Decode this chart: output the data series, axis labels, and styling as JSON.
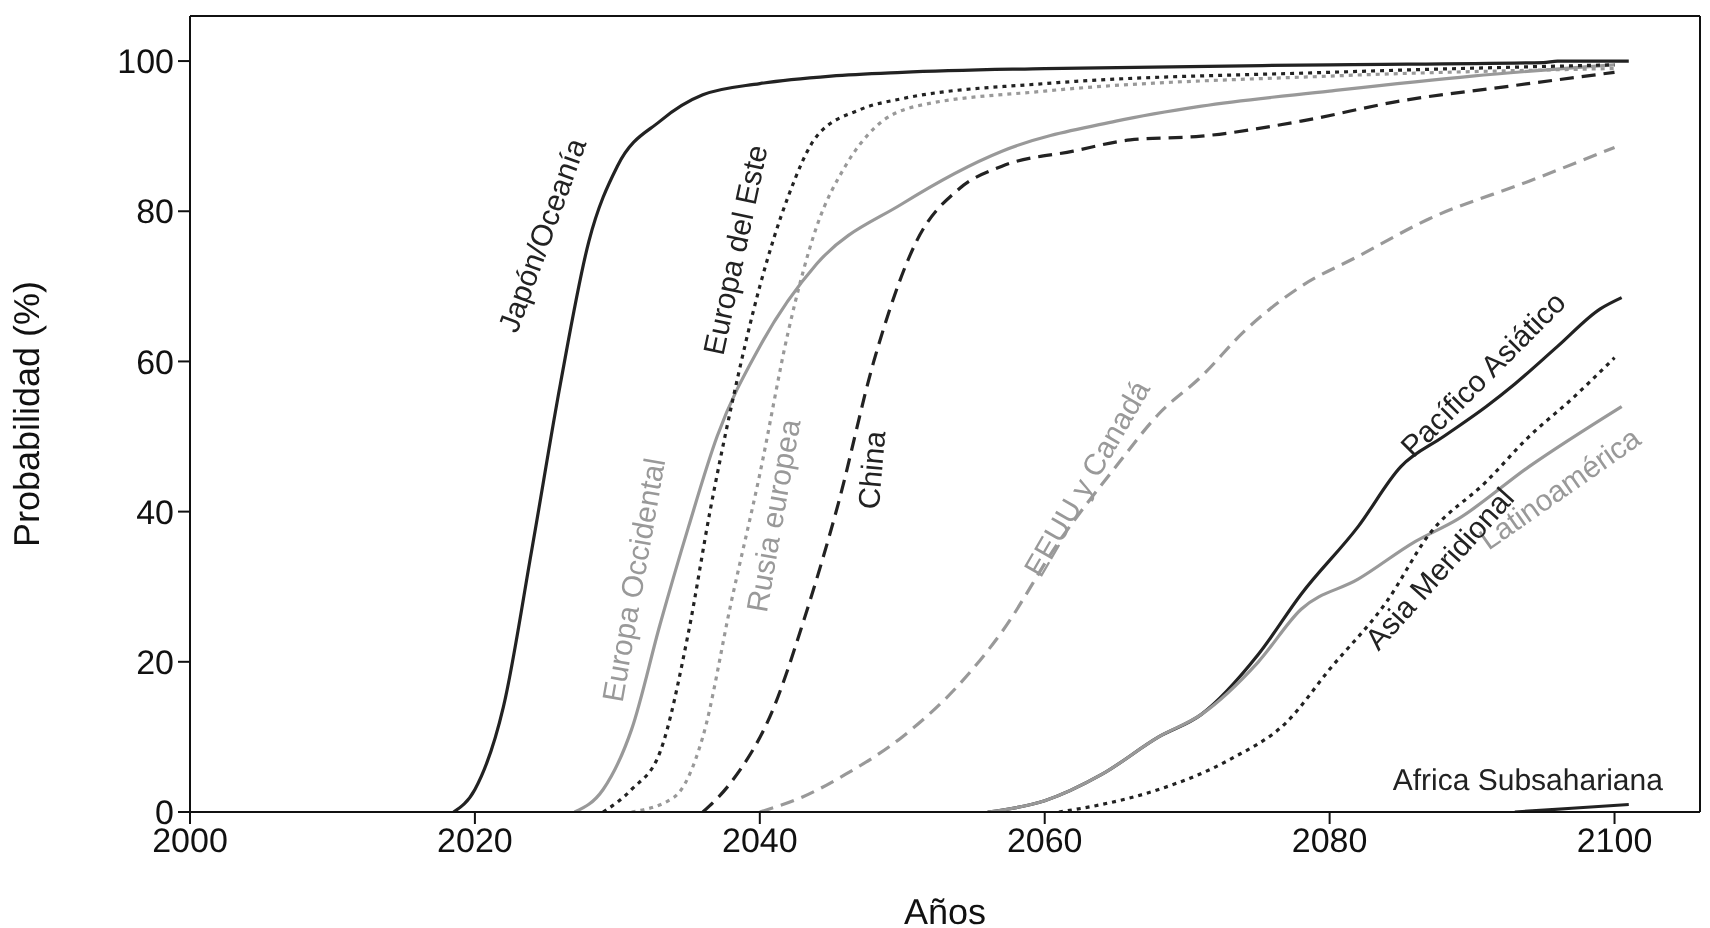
{
  "chart_data": {
    "type": "line",
    "xlabel": "Años",
    "ylabel": "Probabilidad  (%)",
    "xlim": [
      2000,
      2106
    ],
    "xticks": [
      2000,
      2020,
      2040,
      2060,
      2080,
      2100
    ],
    "ylim": [
      0,
      106
    ],
    "yticks": [
      0,
      20,
      40,
      60,
      80,
      100
    ],
    "marker": "none",
    "series": [
      {
        "name": "Japón/Oceanía",
        "color": "#222222",
        "line_style": "solid",
        "x": [
          2018.5,
          2020,
          2022,
          2024,
          2026,
          2028,
          2030,
          2033,
          2036,
          2040,
          2045,
          2050,
          2060,
          2080,
          2095,
          2096,
          2101
        ],
        "values": [
          0,
          3,
          14,
          35,
          57,
          76,
          86,
          92,
          95.5,
          97,
          98,
          98.5,
          99,
          99.5,
          99.8,
          100,
          100
        ]
      },
      {
        "name": "Europa Occidental",
        "color": "#999999",
        "line_style": "solid",
        "x": [
          2027,
          2029,
          2031,
          2033,
          2035,
          2037,
          2040,
          2044,
          2050,
          2057,
          2065,
          2071,
          2080,
          2090,
          2100
        ],
        "values": [
          0,
          3,
          11,
          25,
          38,
          50,
          62,
          73,
          81,
          88,
          92,
          94,
          96,
          98,
          99.5
        ]
      },
      {
        "name": "Europa del Este",
        "color": "#222222",
        "line_style": "dotted",
        "x": [
          2029,
          2031,
          2033,
          2035,
          2036.5,
          2038,
          2040,
          2042,
          2044,
          2047,
          2050,
          2060,
          2080,
          2100
        ],
        "values": [
          0,
          3,
          8,
          24,
          40,
          54,
          70,
          82,
          90,
          93.5,
          95,
          97,
          98.5,
          99.5
        ]
      },
      {
        "name": "Rusia europea",
        "color": "#999999",
        "line_style": "dotted",
        "x": [
          2031,
          2034,
          2036,
          2038,
          2040,
          2042,
          2044,
          2046,
          2048,
          2051,
          2060,
          2080,
          2100
        ],
        "values": [
          0,
          2,
          10,
          28,
          45,
          64,
          78,
          86,
          91,
          94,
          96,
          98,
          99
        ]
      },
      {
        "name": "China",
        "color": "#222222",
        "line_style": "dashed",
        "x": [
          2036,
          2038,
          2041,
          2043,
          2045.5,
          2048,
          2051,
          2054,
          2057,
          2062,
          2066,
          2071,
          2078,
          2085,
          2092,
          2100
        ],
        "values": [
          0,
          4,
          14,
          25,
          41,
          60,
          76,
          83,
          86,
          88,
          89.5,
          90,
          92,
          94.7,
          96.5,
          98.5
        ]
      },
      {
        "name": "EEUU y Canadá",
        "color": "#999999",
        "line_style": "dashed",
        "x": [
          2040,
          2043,
          2046,
          2050,
          2054,
          2057,
          2061,
          2065,
          2068,
          2071,
          2074,
          2078,
          2082,
          2087,
          2094,
          2100
        ],
        "values": [
          0,
          2,
          5,
          10,
          17,
          24,
          36,
          46,
          53,
          58,
          64,
          70,
          74,
          79,
          84,
          88.5
        ]
      },
      {
        "name": "Pacífico Asiático",
        "color": "#222222",
        "line_style": "solid",
        "x": [
          2056,
          2060,
          2064,
          2068,
          2071,
          2075,
          2078,
          2082,
          2085,
          2088,
          2091,
          2093,
          2096,
          2099,
          2100.5
        ],
        "values": [
          0,
          1.5,
          5,
          10,
          13,
          21,
          29,
          38,
          46,
          50,
          54,
          57,
          62,
          67,
          68.5
        ]
      },
      {
        "name": "Latinoamérica",
        "color": "#999999",
        "line_style": "solid",
        "x": [
          2056,
          2060,
          2064,
          2068,
          2071,
          2075,
          2078,
          2082,
          2086,
          2089,
          2094,
          2100.5
        ],
        "values": [
          0,
          1.5,
          5,
          10,
          13,
          20,
          27,
          31,
          36,
          39,
          46,
          54
        ]
      },
      {
        "name": "Asia Meridional",
        "color": "#222222",
        "line_style": "dotted",
        "x": [
          2061,
          2064,
          2068,
          2073,
          2077,
          2080,
          2084,
          2087,
          2091,
          2094,
          2097,
          2100
        ],
        "values": [
          0,
          1,
          3,
          7,
          12,
          19,
          28,
          37,
          44,
          50,
          55,
          60.5
        ]
      },
      {
        "name": "Africa Subsahariana",
        "color": "#222222",
        "line_style": "solid",
        "x": [
          2093,
          2097,
          2101
        ],
        "values": [
          0,
          0.5,
          1
        ]
      }
    ]
  }
}
